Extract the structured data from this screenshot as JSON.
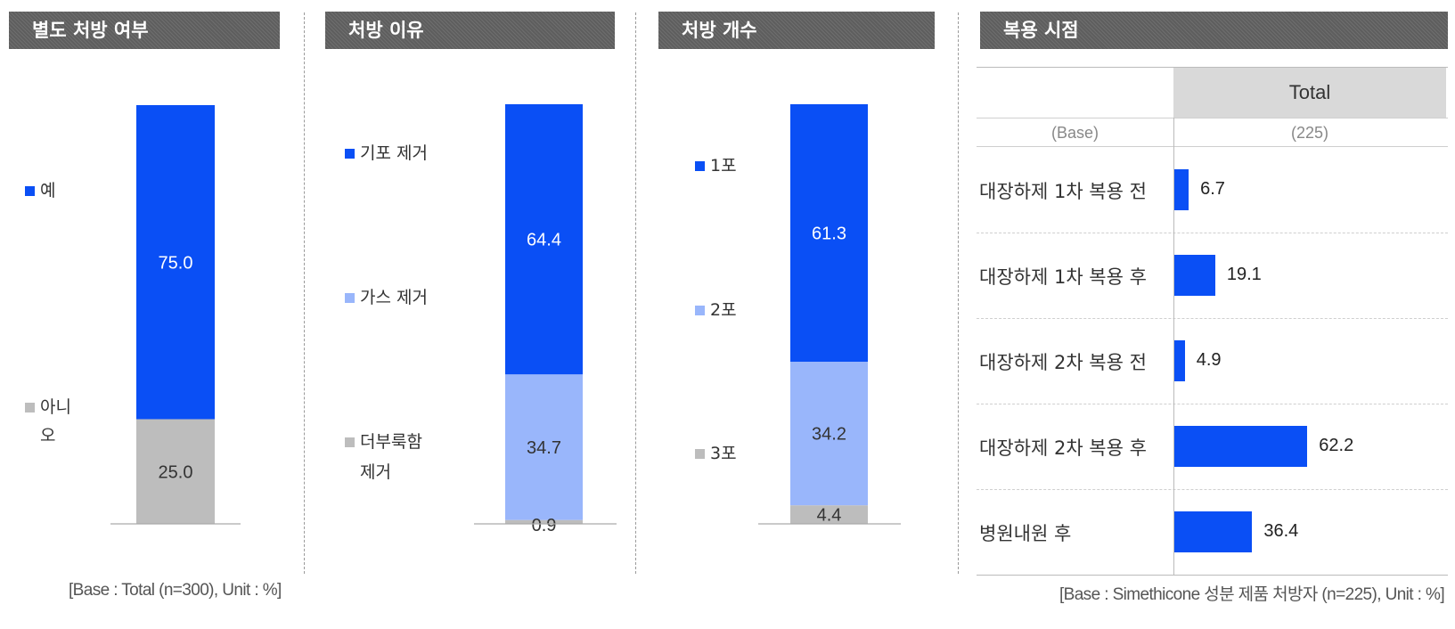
{
  "chart_data": [
    {
      "type": "bar",
      "stacked": true,
      "title": "별도 처방 여부",
      "series": [
        {
          "name": "예",
          "values": [
            75.0
          ],
          "color": "#0a4ff5"
        },
        {
          "name": "아니오",
          "values": [
            25.0
          ],
          "color": "#bdbdbd"
        }
      ],
      "legend_lines": [
        [
          "예"
        ],
        [
          "아니",
          "오"
        ]
      ]
    },
    {
      "type": "bar",
      "stacked": true,
      "title": "처방 이유",
      "series": [
        {
          "name": "기포 제거",
          "values": [
            64.4
          ],
          "color": "#0a4ff5"
        },
        {
          "name": "가스 제거",
          "values": [
            34.7
          ],
          "color": "#99b6fb"
        },
        {
          "name": "더부룩함 제거",
          "values": [
            0.9
          ],
          "color": "#bdbdbd"
        }
      ],
      "legend_lines": [
        [
          "기포 제거"
        ],
        [
          "가스 제거"
        ],
        [
          "더부룩함",
          "제거"
        ]
      ]
    },
    {
      "type": "bar",
      "stacked": true,
      "title": "처방 개수",
      "series": [
        {
          "name": "1포",
          "values": [
            61.3
          ],
          "color": "#0a4ff5"
        },
        {
          "name": "2포",
          "values": [
            34.2
          ],
          "color": "#99b6fb"
        },
        {
          "name": "3포",
          "values": [
            4.4
          ],
          "color": "#bdbdbd"
        }
      ],
      "legend_lines": [
        [
          "1포"
        ],
        [
          "2포"
        ],
        [
          "3포"
        ]
      ]
    },
    {
      "type": "bar",
      "orientation": "horizontal",
      "title": "복용 시점",
      "column_header": "Total",
      "base_label": "(Base)",
      "base_value": "(225)",
      "categories": [
        "대장하제 1차 복용 전",
        "대장하제 1차 복용 후",
        "대장하제 2차 복용 전",
        "대장하제 2차 복용 후",
        "병원내원 후"
      ],
      "values": [
        6.7,
        19.1,
        4.9,
        62.2,
        36.4
      ],
      "color": "#0a4ff5"
    }
  ],
  "footnotes": {
    "left": "[Base : Total (n=300), Unit : %]",
    "right": "[Base : Simethicone 성분 제품 처방자 (n=225), Unit : %]"
  }
}
